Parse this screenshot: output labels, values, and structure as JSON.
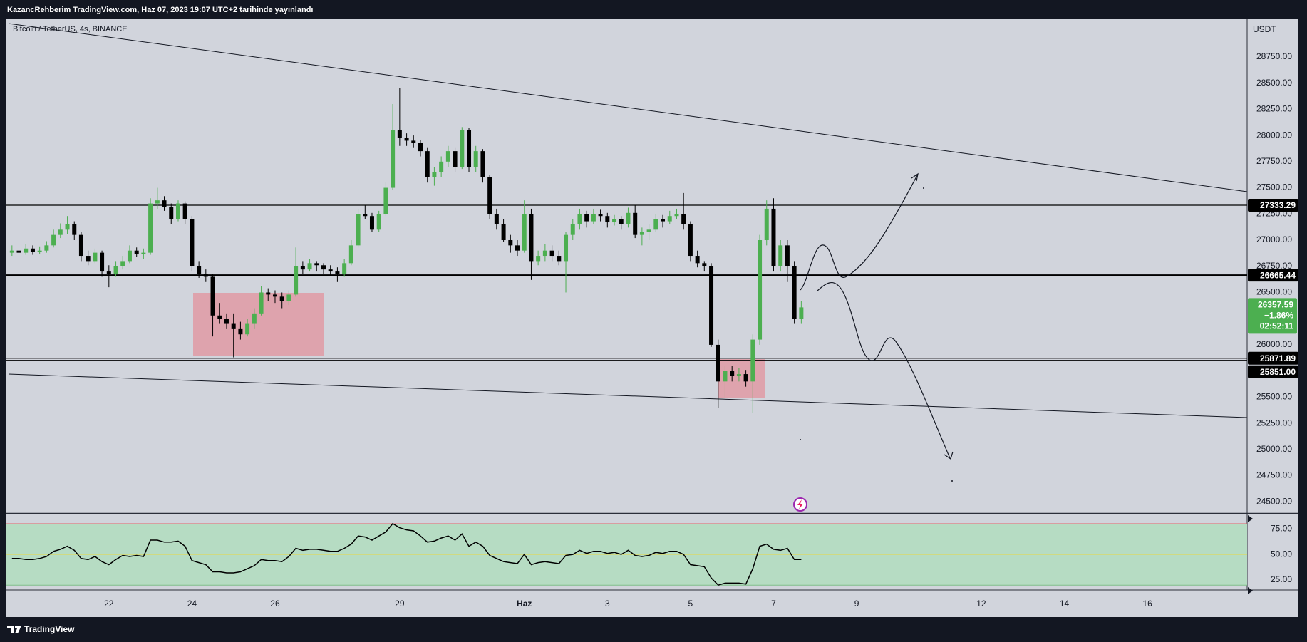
{
  "header": {
    "title": "KazancRehberim TradingView.com, Haz 07, 2023 19:07 UTC+2 tarihinde yayınlandı"
  },
  "footer": {
    "brand": "TradingView"
  },
  "chart_data": {
    "type": "candlestick",
    "title": "Bitcoin / TetherUS, 4s, BINANCE",
    "currency": "USDT",
    "change": "−1.86%",
    "countdown": "02:52:11",
    "up_color": "#4caf50",
    "down_color": "#000000",
    "grid": false,
    "xlim": [
      19.55,
      49.4
    ],
    "xticks": [
      22,
      24,
      26,
      29,
      {
        "value": 32,
        "label": "Haz"
      },
      {
        "value": 34,
        "label": "3"
      },
      {
        "value": 36,
        "label": "5"
      },
      {
        "value": 38,
        "label": "7"
      },
      {
        "value": 40,
        "label": "9"
      },
      {
        "value": 43,
        "label": "12"
      },
      {
        "value": 45,
        "label": "14"
      },
      {
        "value": 47,
        "label": "16"
      }
    ],
    "ylim": [
      24400,
      29110
    ],
    "yticks": [
      {
        "value": 24500,
        "label": "24500.00"
      },
      {
        "value": 24750,
        "label": "24750.00"
      },
      {
        "value": 25000,
        "label": "25000.00"
      },
      {
        "value": 25250,
        "label": "25250.00"
      },
      {
        "value": 25500,
        "label": "25500.00"
      },
      {
        "value": 25750,
        "label": "25750.00"
      },
      {
        "value": 26000,
        "label": "26000.00"
      },
      {
        "value": 26250,
        "label": "26250.00"
      },
      {
        "value": 26500,
        "label": "26500.00"
      },
      {
        "value": 26750,
        "label": "26750.00"
      },
      {
        "value": 27000,
        "label": "27000.00"
      },
      {
        "value": 27250,
        "label": "27250.00"
      },
      {
        "value": 27500,
        "label": "27500.00"
      },
      {
        "value": 27750,
        "label": "27750.00"
      },
      {
        "value": 28000,
        "label": "28000.00"
      },
      {
        "value": 28250,
        "label": "28250.00"
      },
      {
        "value": 28500,
        "label": "28500.00"
      },
      {
        "value": 28750,
        "label": "28750.00"
      }
    ],
    "price_lines": [
      27333.29,
      26665.44,
      25871.89,
      {
        "value": 25851,
        "label": "25851.00"
      }
    ],
    "x": [
      19.667,
      19.833,
      20,
      20.167,
      20.333,
      20.5,
      20.667,
      20.833,
      21,
      21.167,
      21.333,
      21.5,
      21.667,
      21.833,
      22,
      22.167,
      22.333,
      22.5,
      22.667,
      22.833,
      23,
      23.167,
      23.333,
      23.5,
      23.667,
      23.833,
      24,
      24.167,
      24.333,
      24.5,
      24.667,
      24.833,
      25,
      25.167,
      25.333,
      25.5,
      25.667,
      25.833,
      26,
      26.167,
      26.333,
      26.5,
      26.667,
      26.833,
      27,
      27.167,
      27.333,
      27.5,
      27.667,
      27.833,
      28,
      28.167,
      28.333,
      28.5,
      28.667,
      28.833,
      29,
      29.167,
      29.333,
      29.5,
      29.667,
      29.833,
      30,
      30.167,
      30.333,
      30.5,
      30.667,
      30.833,
      31,
      31.167,
      31.333,
      31.5,
      31.667,
      31.833,
      32,
      32.167,
      32.333,
      32.5,
      32.667,
      32.833,
      33,
      33.167,
      33.333,
      33.5,
      33.667,
      33.833,
      34,
      34.167,
      34.333,
      34.5,
      34.667,
      34.833,
      35,
      35.167,
      35.333,
      35.5,
      35.667,
      35.833,
      36,
      36.167,
      36.333,
      36.5,
      36.667,
      36.833,
      37,
      37.167,
      37.333,
      37.5,
      37.667,
      37.833,
      38,
      38.167,
      38.333,
      38.5,
      38.667
    ],
    "ohlc": [
      [
        26880,
        26950,
        26850,
        26900
      ],
      [
        26900,
        26930,
        26850,
        26880
      ],
      [
        26880,
        26960,
        26860,
        26920
      ],
      [
        26920,
        26950,
        26860,
        26890
      ],
      [
        26890,
        26940,
        26870,
        26900
      ],
      [
        26900,
        26990,
        26880,
        26950
      ],
      [
        26950,
        27100,
        26930,
        27050
      ],
      [
        27050,
        27160,
        27020,
        27100
      ],
      [
        27100,
        27230,
        27060,
        27150
      ],
      [
        27150,
        27180,
        27000,
        27050
      ],
      [
        27050,
        27080,
        26800,
        26850
      ],
      [
        26850,
        26900,
        26760,
        26800
      ],
      [
        26800,
        26920,
        26780,
        26880
      ],
      [
        26880,
        26900,
        26650,
        26700
      ],
      [
        26700,
        26760,
        26550,
        26680
      ],
      [
        26680,
        26800,
        26650,
        26750
      ],
      [
        26750,
        26850,
        26720,
        26800
      ],
      [
        26800,
        26950,
        26780,
        26900
      ],
      [
        26900,
        26930,
        26840,
        26870
      ],
      [
        26870,
        26920,
        26820,
        26880
      ],
      [
        26880,
        27400,
        26860,
        27350
      ],
      [
        27350,
        27500,
        27300,
        27380
      ],
      [
        27380,
        27420,
        27280,
        27320
      ],
      [
        27320,
        27350,
        27150,
        27200
      ],
      [
        27200,
        27380,
        27180,
        27350
      ],
      [
        27350,
        27370,
        27150,
        27200
      ],
      [
        27200,
        27230,
        26700,
        26750
      ],
      [
        26750,
        26800,
        26640,
        26680
      ],
      [
        26680,
        26720,
        26600,
        26650
      ],
      [
        26650,
        26680,
        26080,
        26280
      ],
      [
        26280,
        26400,
        26200,
        26250
      ],
      [
        26250,
        26300,
        26150,
        26200
      ],
      [
        26200,
        26300,
        25880,
        26150
      ],
      [
        26150,
        26220,
        26050,
        26100
      ],
      [
        26100,
        26250,
        26080,
        26200
      ],
      [
        26200,
        26350,
        26150,
        26300
      ],
      [
        26300,
        26560,
        26280,
        26500
      ],
      [
        26500,
        26540,
        26420,
        26480
      ],
      [
        26480,
        26520,
        26400,
        26460
      ],
      [
        26460,
        26500,
        26350,
        26420
      ],
      [
        26420,
        26520,
        26380,
        26480
      ],
      [
        26480,
        26930,
        26460,
        26750
      ],
      [
        26750,
        26800,
        26680,
        26720
      ],
      [
        26720,
        26820,
        26700,
        26780
      ],
      [
        26780,
        26800,
        26700,
        26760
      ],
      [
        26760,
        26780,
        26680,
        26720
      ],
      [
        26720,
        26760,
        26660,
        26700
      ],
      [
        26700,
        26740,
        26600,
        26680
      ],
      [
        26680,
        26820,
        26650,
        26780
      ],
      [
        26780,
        27000,
        26760,
        26950
      ],
      [
        26950,
        27300,
        26930,
        27250
      ],
      [
        27250,
        27330,
        27200,
        27230
      ],
      [
        27230,
        27260,
        27080,
        27100
      ],
      [
        27100,
        27280,
        27080,
        27250
      ],
      [
        27250,
        27550,
        27230,
        27500
      ],
      [
        27500,
        28300,
        27480,
        28050
      ],
      [
        28050,
        28450,
        27900,
        27980
      ],
      [
        27980,
        28020,
        27900,
        27950
      ],
      [
        27950,
        28000,
        27880,
        27930
      ],
      [
        27930,
        27960,
        27800,
        27850
      ],
      [
        27850,
        27880,
        27550,
        27600
      ],
      [
        27600,
        27700,
        27520,
        27650
      ],
      [
        27650,
        27800,
        27600,
        27750
      ],
      [
        27750,
        27900,
        27700,
        27850
      ],
      [
        27850,
        27880,
        27650,
        27700
      ],
      [
        27700,
        28080,
        27680,
        28050
      ],
      [
        28050,
        28070,
        27650,
        27700
      ],
      [
        27700,
        27900,
        27650,
        27850
      ],
      [
        27850,
        27870,
        27550,
        27600
      ],
      [
        27600,
        27620,
        27200,
        27250
      ],
      [
        27250,
        27300,
        27100,
        27150
      ],
      [
        27150,
        27200,
        26980,
        27000
      ],
      [
        27000,
        27050,
        26880,
        26950
      ],
      [
        26950,
        27000,
        26850,
        26900
      ],
      [
        26900,
        27380,
        26880,
        27250
      ],
      [
        27250,
        27300,
        26620,
        26800
      ],
      [
        26800,
        26900,
        26760,
        26850
      ],
      [
        26850,
        26960,
        26800,
        26900
      ],
      [
        26900,
        26950,
        26800,
        26850
      ],
      [
        26850,
        26900,
        26760,
        26800
      ],
      [
        26800,
        27080,
        26500,
        27050
      ],
      [
        27050,
        27200,
        27000,
        27150
      ],
      [
        27150,
        27300,
        27100,
        27250
      ],
      [
        27250,
        27280,
        27120,
        27180
      ],
      [
        27180,
        27300,
        27150,
        27250
      ],
      [
        27250,
        27290,
        27180,
        27230
      ],
      [
        27230,
        27260,
        27120,
        27170
      ],
      [
        27170,
        27240,
        27140,
        27200
      ],
      [
        27200,
        27230,
        27100,
        27150
      ],
      [
        27150,
        27310,
        27120,
        27260
      ],
      [
        27260,
        27333,
        27020,
        27050
      ],
      [
        27050,
        27120,
        26950,
        27080
      ],
      [
        27080,
        27150,
        27000,
        27100
      ],
      [
        27100,
        27250,
        27080,
        27200
      ],
      [
        27200,
        27240,
        27120,
        27180
      ],
      [
        27180,
        27280,
        27150,
        27230
      ],
      [
        27230,
        27300,
        27200,
        27250
      ],
      [
        27250,
        27450,
        27100,
        27150
      ],
      [
        27150,
        27180,
        26800,
        26850
      ],
      [
        26850,
        26900,
        26740,
        26780
      ],
      [
        26780,
        26800,
        26700,
        26750
      ],
      [
        26750,
        26780,
        25980,
        26000
      ],
      [
        26000,
        26050,
        25400,
        25650
      ],
      [
        25650,
        25800,
        25500,
        25750
      ],
      [
        25750,
        25800,
        25650,
        25700
      ],
      [
        25700,
        25780,
        25650,
        25720
      ],
      [
        25720,
        25760,
        25600,
        25650
      ],
      [
        25650,
        26100,
        25350,
        26050
      ],
      [
        26050,
        27050,
        26000,
        27000
      ],
      [
        27000,
        27380,
        26950,
        27300
      ],
      [
        27300,
        27400,
        26700,
        26750
      ],
      [
        26750,
        27000,
        26700,
        26950
      ],
      [
        26950,
        27000,
        26600,
        26750
      ],
      [
        26750,
        26800,
        26200,
        26250
      ],
      [
        26250,
        26420,
        26200,
        26357.59
      ]
    ],
    "rsi": {
      "color": "#000000",
      "ylim": [
        16,
        89
      ],
      "yticks": [
        {
          "value": 75,
          "label": "75.00"
        },
        {
          "value": 50,
          "label": "50.00"
        },
        {
          "value": 25,
          "label": "25.00"
        }
      ],
      "levels": [
        80,
        50,
        20
      ],
      "values": [
        46,
        46,
        45,
        45,
        46,
        48,
        53,
        55,
        58,
        54,
        46,
        45,
        48,
        43,
        40,
        45,
        49,
        48,
        49,
        48,
        64,
        64,
        62,
        62,
        63,
        58,
        44,
        42,
        40,
        33,
        33,
        32,
        32,
        33,
        36,
        39,
        45,
        44,
        44,
        43,
        48,
        56,
        54,
        55,
        55,
        54,
        53,
        53,
        56,
        60,
        68,
        67,
        64,
        68,
        72,
        80,
        76,
        74,
        73,
        68,
        62,
        63,
        66,
        68,
        64,
        70,
        58,
        62,
        58,
        49,
        46,
        43,
        42,
        41,
        50,
        40,
        42,
        43,
        42,
        41,
        49,
        50,
        54,
        51,
        53,
        53,
        51,
        52,
        50,
        54,
        49,
        48,
        49,
        52,
        51,
        53,
        53,
        50,
        40,
        39,
        38,
        27,
        20,
        22,
        22,
        22,
        21,
        36,
        58,
        60,
        55,
        54,
        56,
        45,
        45
      ]
    }
  }
}
